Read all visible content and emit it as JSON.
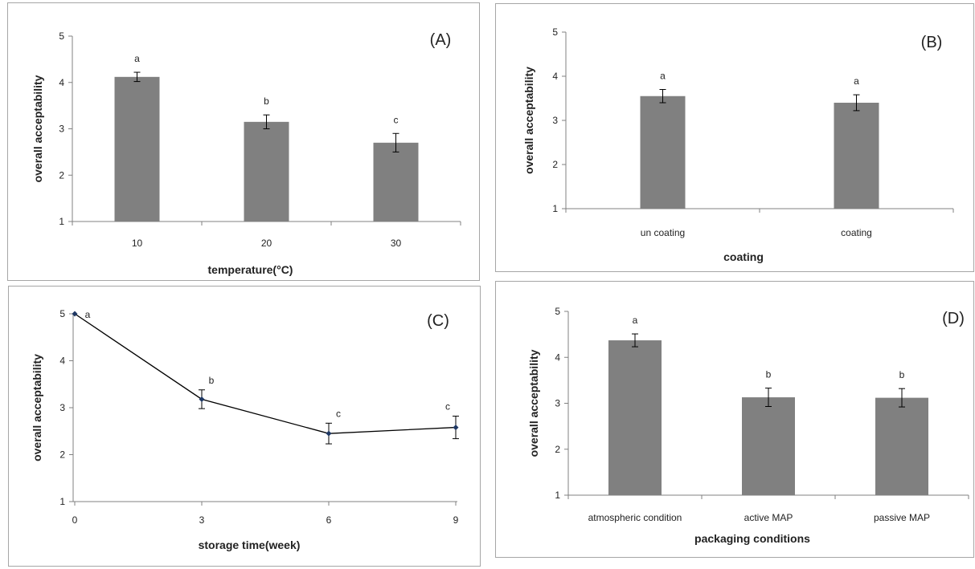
{
  "colors": {
    "bar": "#808080",
    "axis": "#808080",
    "line": "#000000",
    "marker": "#1f3864",
    "error_bar": "#000000"
  },
  "chart_data": [
    {
      "panel": "(A)",
      "type": "bar",
      "xlabel": "temperature(°C)",
      "ylabel": "overall acceptability",
      "ylim": [
        1,
        5
      ],
      "yticks": [
        "1",
        "2",
        "3",
        "4",
        "5"
      ],
      "categories": [
        "10",
        "20",
        "30"
      ],
      "values": [
        4.12,
        3.15,
        2.7
      ],
      "errors": [
        0.1,
        0.15,
        0.2
      ],
      "annotations": [
        "a",
        "b",
        "c"
      ],
      "grid": false,
      "legend": "none"
    },
    {
      "panel": "(B)",
      "type": "bar",
      "xlabel": "coating",
      "ylabel": "overall acceptability",
      "ylim": [
        1,
        5
      ],
      "yticks": [
        "1",
        "2",
        "3",
        "4",
        "5"
      ],
      "categories": [
        "un coating",
        "coating"
      ],
      "values": [
        3.55,
        3.4
      ],
      "errors": [
        0.15,
        0.18
      ],
      "annotations": [
        "a",
        "a"
      ],
      "grid": false,
      "legend": "none"
    },
    {
      "panel": "(C)",
      "type": "line",
      "xlabel": "storage time(week)",
      "ylabel": "overall acceptability",
      "ylim": [
        1,
        5
      ],
      "yticks": [
        "1",
        "2",
        "3",
        "4",
        "5"
      ],
      "xticks": [
        "0",
        "3",
        "6",
        "9"
      ],
      "x": [
        0,
        3,
        6,
        9
      ],
      "values": [
        5.0,
        3.18,
        2.45,
        2.58
      ],
      "errors": [
        0.0,
        0.2,
        0.22,
        0.24
      ],
      "annotations": [
        "a",
        "b",
        "c",
        "c"
      ],
      "grid": false,
      "legend": "none"
    },
    {
      "panel": "(D)",
      "type": "bar",
      "xlabel": "packaging conditions",
      "ylabel": "overall acceptability",
      "ylim": [
        1,
        5
      ],
      "yticks": [
        "1",
        "2",
        "3",
        "4",
        "5"
      ],
      "categories": [
        "atmospheric condition",
        "active MAP",
        "passive MAP"
      ],
      "values": [
        4.37,
        3.13,
        3.12
      ],
      "errors": [
        0.14,
        0.2,
        0.2
      ],
      "annotations": [
        "a",
        "b",
        "b"
      ],
      "grid": false,
      "legend": "none"
    }
  ]
}
